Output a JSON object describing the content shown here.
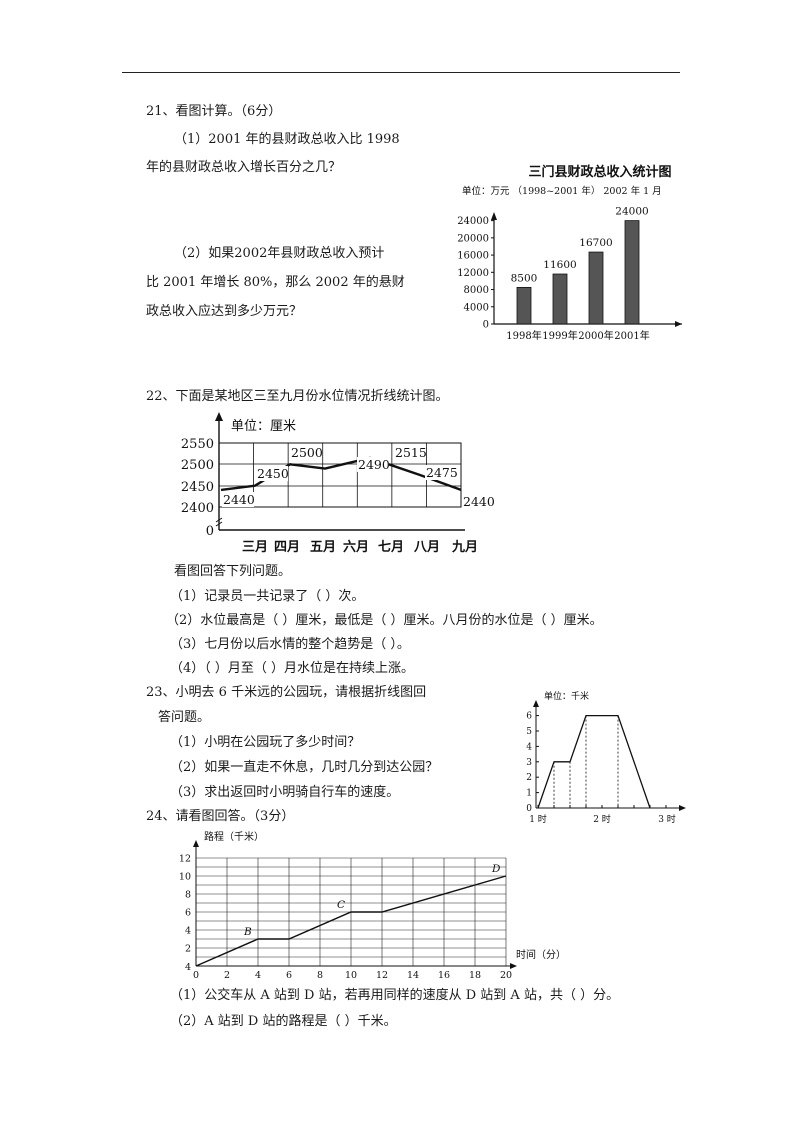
{
  "q21": {
    "title": "21、看图计算。（6分）",
    "p1a": "（1）2001 年的县财政总收入比 1998",
    "p1b": "年的县财政总收入增长百分之几？",
    "p2a": "（2）如果2002年县财政总收入预计",
    "p2b": "比 2001 年增长 80%，那么 2002 年的悬财",
    "p2c": "政总收入应达到多少万元？"
  },
  "q22": {
    "title": "22、下面是某地区三至九月份水位情况折线统计图。",
    "intro": "看图回答下列问题。",
    "a1": "（1）记录员一共记录了（    ）次。",
    "a2": "（2）水位最高是（       ）厘米，最低是（      ）厘米。八月份的水位是（     ）厘米。",
    "a3": "（3）七月份以后水情的整个趋势是（       ）。",
    "a4": "（4）（       ）月至（       ）月水位是在持续上涨。"
  },
  "q23": {
    "title": "23、小明去 6 千米远的公园玩，请根据折线图回",
    "title2": "答问题。",
    "a1": "（1）小明在公园玩了多少时间？",
    "a2": "（2）如果一直走不休息，几时几分到达公园？",
    "a3": "（3）求出返回时小明骑自行车的速度。"
  },
  "q24": {
    "title": "24、请看图回答。（3分）",
    "a1": "（1）公交车从 A 站到 D 站，若再用同样的速度从 D 站到 A 站，共（  ）分。",
    "a2": "（2）A 站到 D 站的路程是（        ）千米。"
  },
  "chart_data": [
    {
      "type": "bar",
      "title": "三门县财政总收入统计图",
      "subtitle": "单位：万元 （1998~2001 年）  2002 年 1 月",
      "categories": [
        "1998年",
        "1999年",
        "2000年",
        "2001年"
      ],
      "values": [
        8500,
        11600,
        16700,
        24000
      ],
      "value_labels": [
        "8500",
        "11600",
        "16700",
        "24000"
      ],
      "yticks": [
        0,
        4000,
        8000,
        12000,
        16000,
        20000,
        24000
      ],
      "ylim": [
        0,
        26000
      ],
      "color": "#555555"
    },
    {
      "type": "line",
      "unit_label": "单位：厘米",
      "categories": [
        "三月",
        "四月",
        "五月",
        "六月",
        "七月",
        "八月",
        "九月"
      ],
      "values": [
        2440,
        2450,
        2500,
        2490,
        2515,
        2475,
        2440
      ],
      "value_labels": [
        "2440",
        "2450",
        "2500",
        "2490",
        "2515",
        "2475",
        "2440"
      ],
      "yticks": [
        0,
        2400,
        2450,
        2500,
        2550
      ],
      "grid": true
    },
    {
      "type": "line",
      "unit_label": "单位：千米",
      "x_tick_labels": [
        "1 时",
        "2 时",
        "3 时"
      ],
      "yticks": [
        0,
        1,
        2,
        3,
        4,
        5,
        6
      ],
      "x_hours": [
        1,
        1.25,
        1.5,
        1.75,
        2.25,
        2.75
      ],
      "y_km": [
        0,
        3,
        3,
        6,
        6,
        0
      ],
      "grid": false
    },
    {
      "type": "line",
      "ylabel": "路程（千米）",
      "xlabel": "时间（分）",
      "xticks": [
        0,
        2,
        4,
        6,
        8,
        10,
        12,
        14,
        16,
        18,
        20
      ],
      "yticks": [
        2,
        4,
        6,
        8,
        10,
        12
      ],
      "origin_label": "4",
      "points_min": [
        0,
        4,
        6,
        10,
        12,
        20
      ],
      "points_km": [
        0,
        3,
        3,
        6,
        6,
        10
      ],
      "point_labels": [
        {
          "label": "B",
          "at": 1
        },
        {
          "label": "C",
          "at": 3
        },
        {
          "label": "D",
          "at": 5
        }
      ],
      "ylim": [
        0,
        12
      ],
      "xlim": [
        0,
        20
      ],
      "grid": true
    }
  ]
}
